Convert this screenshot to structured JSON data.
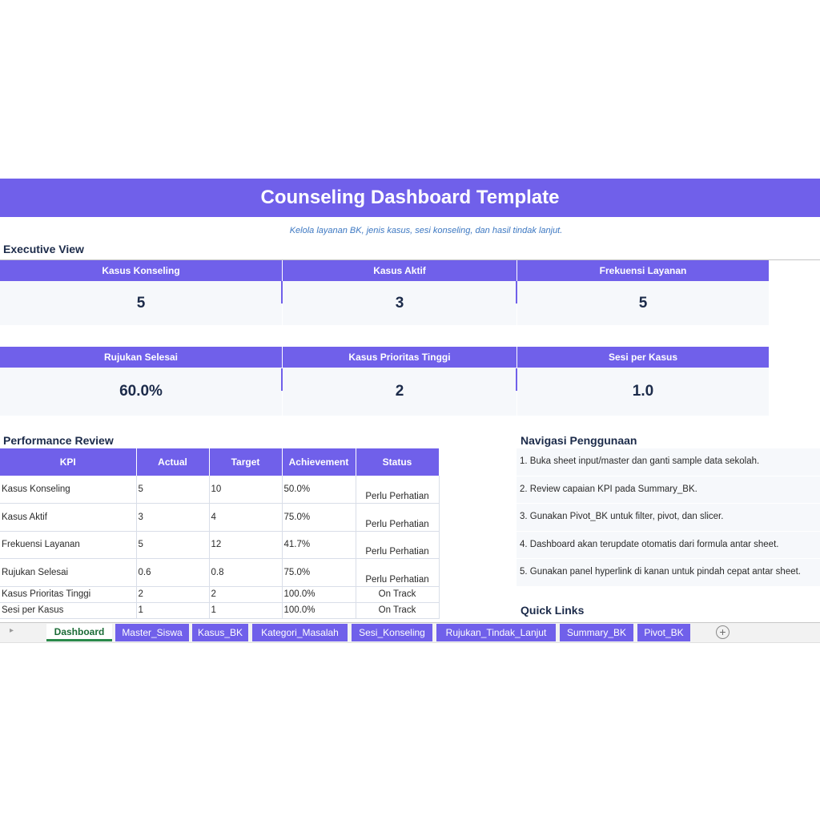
{
  "title": "Counseling Dashboard Template",
  "subtitle": "Kelola layanan BK, jenis kasus, sesi konseling, dan hasil tindak lanjut.",
  "executive_view": {
    "heading": "Executive View",
    "cards": [
      {
        "label": "Kasus Konseling",
        "value": "5"
      },
      {
        "label": "Kasus Aktif",
        "value": "3"
      },
      {
        "label": "Frekuensi Layanan",
        "value": "5"
      },
      {
        "label": "Rujukan Selesai",
        "value": "60.0%"
      },
      {
        "label": "Kasus Prioritas Tinggi",
        "value": "2"
      },
      {
        "label": "Sesi per Kasus",
        "value": "1.0"
      }
    ]
  },
  "performance_review": {
    "heading": "Performance Review",
    "columns": [
      "KPI",
      "Actual",
      "Target",
      "Achievement",
      "Status"
    ],
    "rows": [
      {
        "kpi": "Kasus Konseling",
        "actual": "5",
        "target": "10",
        "achievement": "50.0%",
        "status": "Perlu Perhatian"
      },
      {
        "kpi": "Kasus Aktif",
        "actual": "3",
        "target": "4",
        "achievement": "75.0%",
        "status": "Perlu Perhatian"
      },
      {
        "kpi": "Frekuensi Layanan",
        "actual": "5",
        "target": "12",
        "achievement": "41.7%",
        "status": "Perlu Perhatian"
      },
      {
        "kpi": "Rujukan Selesai",
        "actual": "0.6",
        "target": "0.8",
        "achievement": "75.0%",
        "status": "Perlu Perhatian"
      },
      {
        "kpi": "Kasus Prioritas Tinggi",
        "actual": "2",
        "target": "2",
        "achievement": "100.0%",
        "status": "On Track"
      },
      {
        "kpi": "Sesi per Kasus",
        "actual": "1",
        "target": "1",
        "achievement": "100.0%",
        "status": "On Track"
      }
    ]
  },
  "navigation": {
    "heading": "Navigasi Penggunaan",
    "items": [
      "1. Buka sheet input/master dan ganti sample data sekolah.",
      "2. Review capaian KPI pada Summary_BK.",
      "3. Gunakan Pivot_BK untuk filter, pivot, dan slicer.",
      "4. Dashboard akan terupdate otomatis dari formula antar sheet.",
      "5. Gunakan panel hyperlink di kanan untuk pindah cepat antar sheet."
    ]
  },
  "quick_links": {
    "heading": "Quick Links"
  },
  "sheet_tabs": {
    "active": "Dashboard",
    "tabs": [
      "Dashboard",
      "Master_Siswa",
      "Kasus_BK",
      "Kategori_Masalah",
      "Sesi_Konseling",
      "Rujukan_Tindak_Lanjut",
      "Summary_BK",
      "Pivot_BK"
    ],
    "add_symbol": "+"
  },
  "colors": {
    "accent": "#7060ea",
    "active_tab": "#2a8a4a",
    "subtitle": "#3d78c2"
  }
}
